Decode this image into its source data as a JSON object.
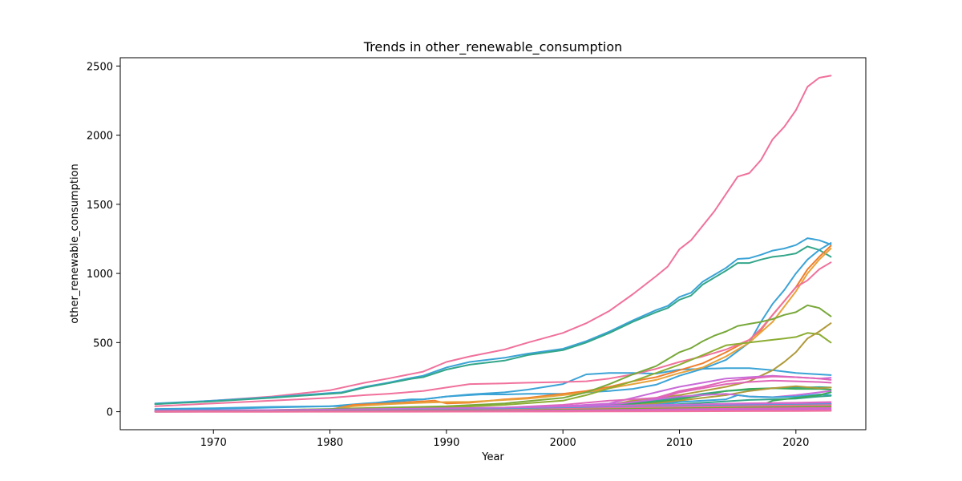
{
  "chart_data": {
    "type": "line",
    "title": "Trends in other_renewable_consumption",
    "xlabel": "Year",
    "ylabel": "other_renewable_consumption",
    "xlim": [
      1962,
      2026
    ],
    "ylim": [
      -130,
      2560
    ],
    "xticks": [
      1970,
      1980,
      1990,
      2000,
      2010,
      2020
    ],
    "yticks": [
      0,
      500,
      1000,
      1500,
      2000,
      2500
    ],
    "grid": false,
    "legend": "none",
    "series": [
      {
        "color": "#f0719c",
        "x": [
          1965,
          1970,
          1975,
          1980,
          1983,
          1985,
          1988,
          1990,
          1992,
          1995,
          1997,
          2000,
          2002,
          2004,
          2006,
          2008,
          2009,
          2010,
          2011,
          2013,
          2015,
          2016,
          2017,
          2018,
          2019,
          2020,
          2021,
          2022,
          2023
        ],
        "values": [
          55,
          80,
          110,
          155,
          210,
          240,
          290,
          360,
          400,
          450,
          500,
          570,
          640,
          730,
          850,
          980,
          1050,
          1175,
          1240,
          1450,
          1700,
          1725,
          1820,
          1970,
          2060,
          2180,
          2350,
          2415,
          2430
        ]
      },
      {
        "color": "#3ba3d6",
        "x": [
          1965,
          1970,
          1975,
          1980,
          1981,
          1983,
          1985,
          1987,
          1988,
          1990,
          1992,
          1995,
          1997,
          2000,
          2002,
          2004,
          2006,
          2008,
          2009,
          2010,
          2011,
          2012,
          2014,
          2015,
          2016,
          2017,
          2018,
          2019,
          2020,
          2021,
          2022,
          2023
        ],
        "values": [
          60,
          80,
          105,
          135,
          140,
          180,
          210,
          245,
          260,
          320,
          360,
          390,
          420,
          455,
          510,
          580,
          660,
          735,
          765,
          830,
          860,
          940,
          1040,
          1105,
          1110,
          1135,
          1165,
          1180,
          1205,
          1255,
          1240,
          1210
        ]
      },
      {
        "color": "#33a68a",
        "x": [
          1965,
          1970,
          1975,
          1980,
          1981,
          1983,
          1985,
          1987,
          1988,
          1990,
          1992,
          1995,
          1997,
          2000,
          2002,
          2004,
          2006,
          2008,
          2009,
          2010,
          2011,
          2012,
          2014,
          2015,
          2016,
          2017,
          2018,
          2019,
          2020,
          2021,
          2022,
          2023
        ],
        "values": [
          55,
          75,
          100,
          130,
          135,
          175,
          205,
          238,
          250,
          305,
          340,
          370,
          410,
          445,
          500,
          570,
          650,
          720,
          750,
          810,
          840,
          920,
          1020,
          1075,
          1075,
          1100,
          1120,
          1130,
          1145,
          1195,
          1170,
          1120
        ]
      },
      {
        "color": "#3ba3d6",
        "x": [
          1965,
          1970,
          1975,
          1980,
          1983,
          1985,
          1988,
          1990,
          1992,
          1995,
          1997,
          2000,
          2002,
          2004,
          2006,
          2008,
          2010,
          2012,
          2014,
          2016,
          2018,
          2020,
          2022,
          2023
        ],
        "values": [
          20,
          25,
          35,
          40,
          60,
          70,
          90,
          110,
          125,
          140,
          160,
          200,
          270,
          280,
          280,
          275,
          305,
          310,
          315,
          315,
          300,
          280,
          270,
          265
        ]
      },
      {
        "color": "#3ba3d6",
        "x": [
          1965,
          1970,
          1975,
          1980,
          1981,
          1983,
          1985,
          1987,
          1988,
          1990,
          1992,
          1993,
          1995,
          1997,
          2000,
          2001,
          2002,
          2004,
          2006,
          2008,
          2010,
          2012,
          2014,
          2016,
          2017,
          2018,
          2019,
          2020,
          2021,
          2022,
          2023
        ],
        "values": [
          15,
          20,
          30,
          40,
          40,
          55,
          75,
          90,
          90,
          110,
          120,
          125,
          125,
          130,
          130,
          135,
          140,
          150,
          165,
          195,
          260,
          310,
          375,
          500,
          650,
          780,
          880,
          1000,
          1100,
          1170,
          1220
        ]
      },
      {
        "color": "#f07e2c",
        "x": [
          1965,
          1970,
          1975,
          1980,
          1982,
          1985,
          1988,
          1989,
          1990,
          1992,
          1995,
          1997,
          2000,
          2002,
          2004,
          2006,
          2008,
          2010,
          2012,
          2014,
          2016,
          2017,
          2018,
          2019,
          2020,
          2021,
          2022,
          2023
        ],
        "values": [
          5,
          8,
          10,
          15,
          50,
          60,
          75,
          80,
          60,
          65,
          90,
          100,
          130,
          150,
          180,
          220,
          250,
          300,
          350,
          430,
          520,
          590,
          700,
          800,
          900,
          1030,
          1120,
          1200
        ]
      },
      {
        "color": "#e8a23a",
        "x": [
          1965,
          1970,
          1975,
          1980,
          1982,
          1985,
          1988,
          1990,
          1992,
          1995,
          1997,
          2000,
          2002,
          2004,
          2006,
          2008,
          2010,
          2012,
          2014,
          2016,
          2018,
          2019,
          2020,
          2021,
          2022,
          2023
        ],
        "values": [
          5,
          8,
          12,
          18,
          40,
          55,
          65,
          70,
          72,
          85,
          95,
          120,
          140,
          170,
          200,
          230,
          280,
          320,
          400,
          500,
          650,
          760,
          870,
          1000,
          1100,
          1180
        ]
      },
      {
        "color": "#f0719c",
        "x": [
          1965,
          1970,
          1975,
          1980,
          1983,
          1985,
          1988,
          1990,
          1992,
          1995,
          1997,
          2000,
          2002,
          2004,
          2006,
          2008,
          2010,
          2012,
          2014,
          2016,
          2017,
          2018,
          2019,
          2020,
          2021,
          2022,
          2023
        ],
        "values": [
          40,
          60,
          80,
          100,
          120,
          130,
          150,
          175,
          200,
          205,
          210,
          215,
          220,
          240,
          270,
          310,
          360,
          400,
          450,
          520,
          600,
          700,
          800,
          900,
          950,
          1030,
          1080
        ]
      },
      {
        "color": "#78a83a",
        "x": [
          1965,
          1970,
          1975,
          1980,
          1985,
          1990,
          1995,
          2000,
          2002,
          2004,
          2006,
          2008,
          2009,
          2010,
          2011,
          2012,
          2013,
          2014,
          2015,
          2016,
          2017,
          2018,
          2019,
          2020,
          2021,
          2022,
          2023
        ],
        "values": [
          5,
          8,
          12,
          20,
          30,
          40,
          60,
          100,
          140,
          200,
          270,
          330,
          380,
          430,
          460,
          510,
          550,
          580,
          620,
          635,
          650,
          670,
          700,
          720,
          770,
          750,
          690
        ]
      },
      {
        "color": "#8cad33",
        "x": [
          1965,
          1970,
          1975,
          1980,
          1985,
          1990,
          1995,
          2000,
          2002,
          2004,
          2006,
          2008,
          2010,
          2012,
          2014,
          2016,
          2018,
          2019,
          2020,
          2021,
          2022,
          2023
        ],
        "values": [
          5,
          8,
          10,
          15,
          20,
          30,
          50,
          80,
          120,
          170,
          220,
          280,
          340,
          410,
          480,
          500,
          520,
          530,
          540,
          570,
          560,
          500
        ]
      },
      {
        "color": "#b09a3a",
        "x": [
          1965,
          1975,
          1985,
          1995,
          2000,
          2004,
          2006,
          2008,
          2010,
          2012,
          2014,
          2015,
          2016,
          2017,
          2018,
          2019,
          2020,
          2021,
          2022,
          2023
        ],
        "values": [
          2,
          3,
          5,
          10,
          30,
          50,
          80,
          100,
          120,
          150,
          180,
          200,
          220,
          260,
          300,
          360,
          430,
          530,
          580,
          640
        ]
      },
      {
        "color": "#c86ad8",
        "x": [
          1965,
          1975,
          1985,
          1995,
          2000,
          2004,
          2006,
          2008,
          2010,
          2012,
          2014,
          2016,
          2018,
          2020,
          2022,
          2023
        ],
        "values": [
          2,
          5,
          10,
          20,
          40,
          60,
          100,
          140,
          180,
          210,
          240,
          250,
          260,
          250,
          240,
          245
        ]
      },
      {
        "color": "#e066b8",
        "x": [
          1965,
          1975,
          1985,
          1995,
          2000,
          2004,
          2006,
          2008,
          2010,
          2012,
          2014,
          2016,
          2018,
          2020,
          2022,
          2023
        ],
        "values": [
          5,
          8,
          15,
          30,
          50,
          80,
          90,
          100,
          150,
          180,
          220,
          240,
          255,
          250,
          240,
          230
        ]
      },
      {
        "color": "#e066b8",
        "x": [
          1965,
          1975,
          1985,
          1995,
          2000,
          2005,
          2008,
          2010,
          2012,
          2014,
          2016,
          2018,
          2020,
          2022,
          2023
        ],
        "values": [
          3,
          6,
          12,
          25,
          40,
          60,
          90,
          140,
          170,
          200,
          215,
          225,
          220,
          215,
          210
        ]
      },
      {
        "color": "#33a68a",
        "x": [
          1965,
          1975,
          1985,
          1995,
          2000,
          2005,
          2008,
          2010,
          2012,
          2014,
          2016,
          2018,
          2020,
          2022,
          2023
        ],
        "values": [
          3,
          6,
          12,
          20,
          35,
          55,
          80,
          100,
          130,
          150,
          160,
          170,
          175,
          178,
          175
        ]
      },
      {
        "color": "#3aaa5a",
        "x": [
          1965,
          1975,
          1985,
          1995,
          2000,
          2005,
          2008,
          2010,
          2012,
          2014,
          2016,
          2018,
          2020,
          2022,
          2023
        ],
        "values": [
          2,
          5,
          8,
          15,
          30,
          50,
          70,
          90,
          120,
          150,
          165,
          170,
          165,
          165,
          160
        ]
      },
      {
        "color": "#b09a3a",
        "x": [
          1965,
          1975,
          1985,
          1995,
          2000,
          2005,
          2008,
          2010,
          2012,
          2014,
          2016,
          2018,
          2020,
          2022,
          2023
        ],
        "values": [
          2,
          4,
          8,
          15,
          25,
          40,
          60,
          80,
          100,
          120,
          150,
          170,
          185,
          170,
          175
        ]
      },
      {
        "color": "#c86ad8",
        "x": [
          1965,
          1975,
          1985,
          1995,
          2000,
          2005,
          2008,
          2010,
          2012,
          2014,
          2016,
          2018,
          2020,
          2022,
          2023
        ],
        "values": [
          5,
          8,
          15,
          25,
          40,
          60,
          90,
          110,
          120,
          130,
          110,
          105,
          120,
          140,
          150
        ]
      },
      {
        "color": "#3ba3d6",
        "x": [
          1965,
          1975,
          1985,
          1995,
          2000,
          2005,
          2008,
          2010,
          2012,
          2014,
          2015,
          2016,
          2018,
          2020,
          2022,
          2023
        ],
        "values": [
          2,
          4,
          8,
          15,
          25,
          40,
          50,
          70,
          80,
          90,
          120,
          110,
          105,
          110,
          125,
          120
        ]
      },
      {
        "color": "#33a68a",
        "x": [
          1965,
          1975,
          1985,
          1995,
          2000,
          2005,
          2008,
          2010,
          2012,
          2014,
          2016,
          2018,
          2020,
          2022,
          2023
        ],
        "values": [
          2,
          3,
          5,
          10,
          20,
          30,
          45,
          55,
          65,
          75,
          85,
          90,
          95,
          110,
          115
        ]
      },
      {
        "color": "#3aaa5a",
        "x": [
          1965,
          1975,
          1985,
          1995,
          2000,
          2005,
          2010,
          2014,
          2016,
          2017,
          2018,
          2020,
          2022,
          2023
        ],
        "values": [
          0,
          1,
          2,
          5,
          10,
          15,
          25,
          35,
          40,
          45,
          80,
          100,
          120,
          140
        ]
      },
      {
        "color": "#e066b8",
        "x": [
          1965,
          1975,
          1985,
          1995,
          2000,
          2005,
          2010,
          2015,
          2020,
          2023
        ],
        "values": [
          5,
          8,
          12,
          20,
          30,
          40,
          50,
          60,
          65,
          70
        ]
      },
      {
        "color": "#c86ad8",
        "x": [
          1965,
          1975,
          1985,
          1995,
          2000,
          2005,
          2010,
          2015,
          2020,
          2023
        ],
        "values": [
          8,
          12,
          20,
          30,
          40,
          45,
          50,
          55,
          58,
          60
        ]
      },
      {
        "color": "#3ba3d6",
        "x": [
          1965,
          1975,
          1985,
          1995,
          2000,
          2005,
          2010,
          2015,
          2020,
          2023
        ],
        "values": [
          3,
          5,
          10,
          18,
          25,
          32,
          40,
          45,
          50,
          55
        ]
      },
      {
        "color": "#f0719c",
        "x": [
          1965,
          1975,
          1985,
          1995,
          2000,
          2005,
          2010,
          2015,
          2020,
          2023
        ],
        "values": [
          2,
          4,
          8,
          14,
          20,
          28,
          35,
          40,
          45,
          48
        ]
      },
      {
        "color": "#78a83a",
        "x": [
          1965,
          1975,
          1985,
          1995,
          2000,
          2005,
          2010,
          2015,
          2020,
          2023
        ],
        "values": [
          1,
          3,
          6,
          10,
          15,
          20,
          25,
          30,
          35,
          38
        ]
      },
      {
        "color": "#e066b8",
        "x": [
          1965,
          1975,
          1985,
          1995,
          2000,
          2005,
          2010,
          2015,
          2020,
          2023
        ],
        "values": [
          1,
          2,
          4,
          7,
          10,
          14,
          18,
          22,
          26,
          28
        ]
      },
      {
        "color": "#c86ad8",
        "x": [
          1965,
          1975,
          1985,
          1995,
          2000,
          2005,
          2010,
          2015,
          2020,
          2023
        ],
        "values": [
          0,
          1,
          2,
          4,
          6,
          9,
          12,
          15,
          18,
          20
        ]
      },
      {
        "color": "#e066b8",
        "x": [
          1965,
          1975,
          1985,
          1995,
          2000,
          2005,
          2010,
          2015,
          2020,
          2023
        ],
        "values": [
          0,
          0,
          1,
          2,
          3,
          5,
          7,
          9,
          11,
          12
        ]
      },
      {
        "color": "#f0719c",
        "x": [
          1965,
          1975,
          1985,
          1995,
          2000,
          2005,
          2010,
          2015,
          2020,
          2023
        ],
        "values": [
          0,
          0,
          0,
          1,
          1,
          2,
          3,
          4,
          5,
          6
        ]
      }
    ]
  }
}
